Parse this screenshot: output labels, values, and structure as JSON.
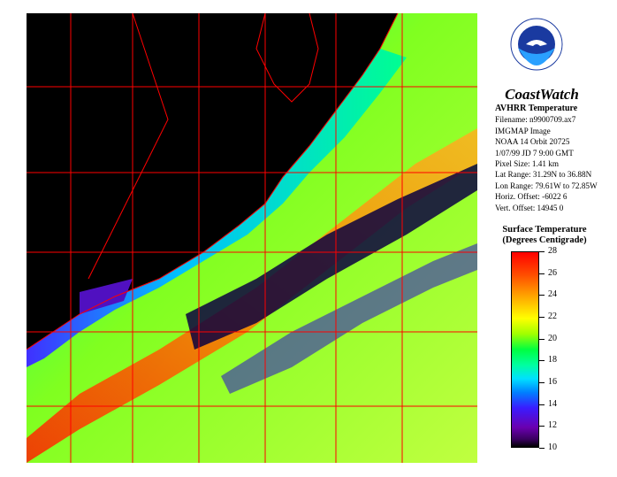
{
  "legend": {
    "title_line1": "Surface Temperature",
    "title_line2": "(Degrees Centigrade)",
    "ticks": [
      "28",
      "26",
      "24",
      "22",
      "20",
      "18",
      "16",
      "14",
      "12",
      "10"
    ]
  },
  "header": {
    "brand": "CoastWatch"
  },
  "meta": {
    "title": "AVHRR Temperature",
    "filename": "Filename: n9900709.ax7",
    "image_type": "IMGMAP Image",
    "orbit": "NOAA 14   Orbit 20725",
    "date": "1/07/99  JD 7   9:00 GMT",
    "pixel_size": "Pixel Size: 1.41 km",
    "lat_range": "Lat Range: 31.29N to 36.88N",
    "lon_range": "Lon Range: 79.61W to 72.85W",
    "horiz_offset": "Horiz. Offset: -6022  6",
    "vert_offset": "Vert. Offset: 14945  0"
  },
  "colors": {
    "land": "#000000",
    "grid": "#ff0000",
    "coast": "#ff0000"
  },
  "icons": {
    "logo": "noaa-logo-icon"
  }
}
